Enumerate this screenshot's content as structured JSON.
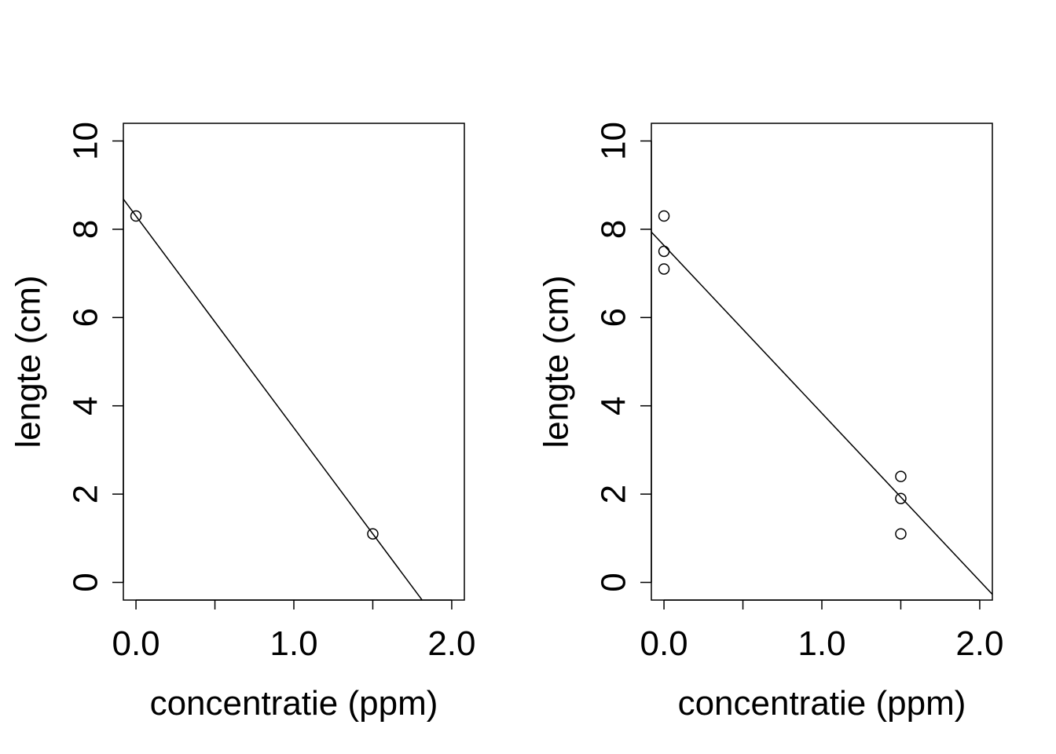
{
  "chart_data": [
    {
      "type": "scatter",
      "title": "",
      "xlabel": "concentratie (ppm)",
      "ylabel": "lengte (cm)",
      "xlim": [
        -0.08,
        2.08
      ],
      "ylim": [
        -0.4,
        10.4
      ],
      "xticks": [
        0,
        0.5,
        1,
        1.5,
        2
      ],
      "xtick_labels": [
        "0.0",
        "",
        "1.0",
        "",
        "2.0"
      ],
      "yticks": [
        0,
        2,
        4,
        6,
        8,
        10
      ],
      "ytick_labels": [
        "0",
        "2",
        "4",
        "6",
        "8",
        "10"
      ],
      "grid": false,
      "points": [
        {
          "x": 0.0,
          "y": 8.3
        },
        {
          "x": 1.5,
          "y": 1.1
        }
      ],
      "fit_line": {
        "intercept": 8.3,
        "slope": -4.8
      }
    },
    {
      "type": "scatter",
      "title": "",
      "xlabel": "concentratie (ppm)",
      "ylabel": "lengte (cm)",
      "xlim": [
        -0.08,
        2.08
      ],
      "ylim": [
        -0.4,
        10.4
      ],
      "xticks": [
        0,
        0.5,
        1,
        1.5,
        2
      ],
      "xtick_labels": [
        "0.0",
        "",
        "1.0",
        "",
        "2.0"
      ],
      "yticks": [
        0,
        2,
        4,
        6,
        8,
        10
      ],
      "ytick_labels": [
        "0",
        "2",
        "4",
        "6",
        "8",
        "10"
      ],
      "grid": false,
      "points": [
        {
          "x": 0.0,
          "y": 8.3
        },
        {
          "x": 0.0,
          "y": 7.5
        },
        {
          "x": 0.0,
          "y": 7.1
        },
        {
          "x": 1.5,
          "y": 2.4
        },
        {
          "x": 1.5,
          "y": 1.9
        },
        {
          "x": 1.5,
          "y": 1.1
        }
      ],
      "fit_line": {
        "intercept": 7.633,
        "slope": -3.8
      }
    }
  ]
}
